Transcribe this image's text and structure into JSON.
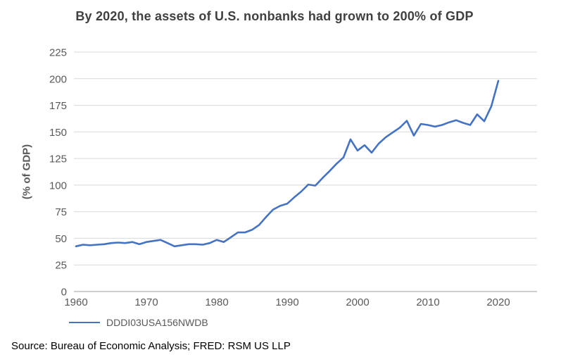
{
  "page": {
    "source": "Source: Bureau of Economic Analysis; FRED: RSM US LLP"
  },
  "chart_data": {
    "type": "line",
    "title": "By 2020, the assets of U.S. nonbanks had grown to 200% of GDP",
    "xlabel": "",
    "ylabel": "(% of GDP)",
    "legend_position": "bottom-left",
    "grid": "horizontal",
    "ylim": [
      0,
      225
    ],
    "yticks": [
      0,
      25,
      50,
      75,
      100,
      125,
      150,
      175,
      200,
      225
    ],
    "xticks": [
      1960,
      1970,
      1980,
      1990,
      2000,
      2010,
      2020
    ],
    "x": [
      1960,
      1961,
      1962,
      1963,
      1964,
      1965,
      1966,
      1967,
      1968,
      1969,
      1970,
      1971,
      1972,
      1973,
      1974,
      1975,
      1976,
      1977,
      1978,
      1979,
      1980,
      1981,
      1982,
      1983,
      1984,
      1985,
      1986,
      1987,
      1988,
      1989,
      1990,
      1991,
      1992,
      1993,
      1994,
      1995,
      1996,
      1997,
      1998,
      1999,
      2000,
      2001,
      2002,
      2003,
      2004,
      2005,
      2006,
      2007,
      2008,
      2009,
      2010,
      2011,
      2012,
      2013,
      2014,
      2015,
      2016,
      2017,
      2018,
      2019,
      2020
    ],
    "series": [
      {
        "name": "DDDI03USA156NWDB",
        "values": [
          42.5,
          44,
          43.5,
          44,
          44.5,
          45.5,
          46,
          45.5,
          46.5,
          44.5,
          46.5,
          47.5,
          48.5,
          45.5,
          42.5,
          43.5,
          44.5,
          44.5,
          44,
          45.5,
          48.5,
          46.5,
          51,
          55.5,
          55.5,
          58,
          62.5,
          70,
          77,
          80.5,
          82.5,
          88.5,
          94,
          100.5,
          99.5,
          106.5,
          113,
          120,
          126,
          143,
          132.5,
          137.5,
          130.5,
          139,
          145,
          149.5,
          154,
          160.5,
          146.5,
          157.5,
          156.5,
          155,
          156.5,
          159,
          161,
          158.5,
          156.5,
          166.5,
          160,
          174,
          198
        ]
      }
    ],
    "colors": {
      "line": "#4472C4",
      "grid": "#D9D9D9",
      "axis": "#BFBFBF",
      "tick_text": "#595959",
      "title_text": "#404040",
      "source_text": "#000000"
    }
  }
}
